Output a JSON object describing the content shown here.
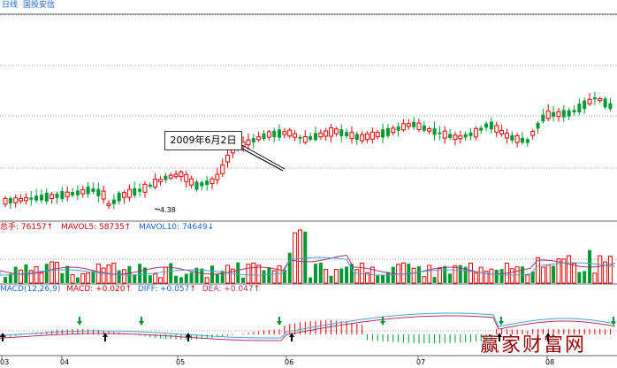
{
  "header": {
    "period": "日线",
    "stock_name": "国投安信"
  },
  "volume_panel": {
    "label": "总手",
    "total": "76157",
    "mavol5_label": "MAVOL5",
    "mavol5": "58735",
    "mavol10_label": "MAVOL10",
    "mavol10": "74649",
    "up_arrow": "↑",
    "down_arrow": "↓"
  },
  "macd_panel": {
    "title": "MACD(12,26,9)",
    "macd_label": "MACD",
    "macd": "+0.020",
    "diff_label": "DIFF",
    "diff": "+0.057",
    "dea_label": "DEA",
    "dea": "+0.047",
    "up_arrow": "↑"
  },
  "annotation": {
    "text": "2009年6月2日"
  },
  "low_price_label": "4.38",
  "x_axis": {
    "labels": [
      "03",
      "04",
      "05",
      "06",
      "07",
      "08"
    ]
  },
  "watermark": "赢家财富网",
  "colors": {
    "up": "#e60000",
    "down": "#009933",
    "grid": "#9a9a9a",
    "ma_purple": "#b0306e",
    "ma_blue": "#4aa3c8",
    "arrow_up": "#000000",
    "arrow_down": "#009933"
  }
}
